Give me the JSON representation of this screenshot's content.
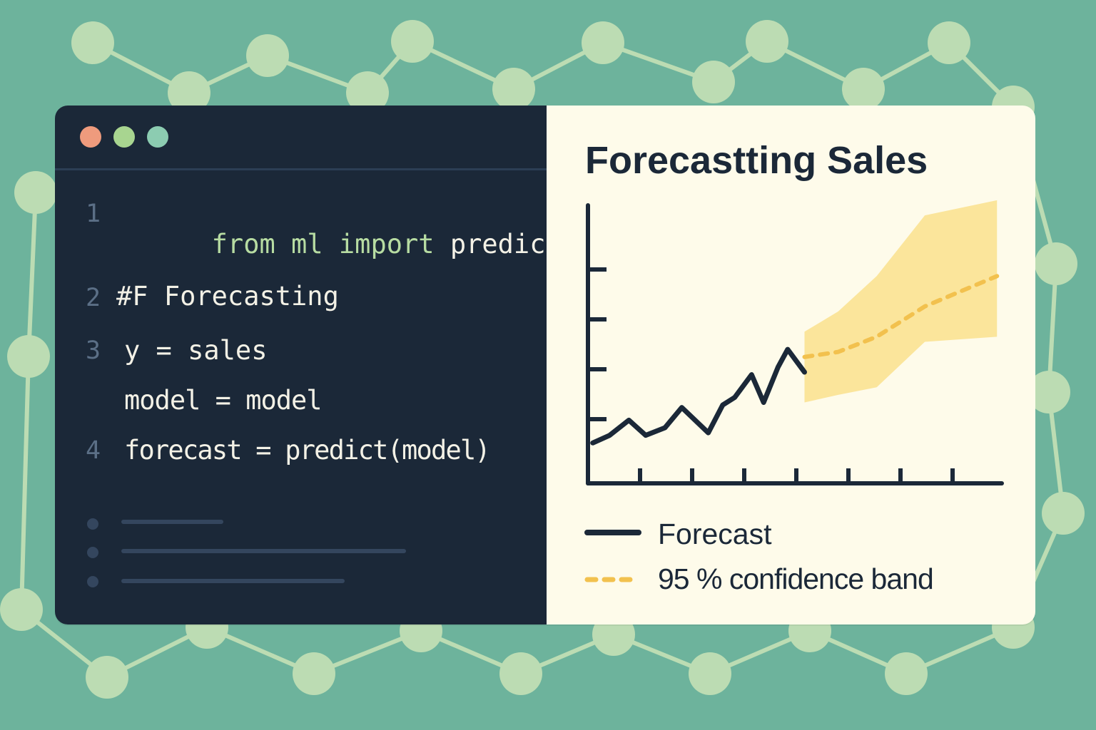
{
  "colors": {
    "background": "#6db39c",
    "node": "#bcdcb3",
    "code_bg": "#1b2838",
    "chart_bg": "#fefbea",
    "ink": "#1b2838",
    "band": "#fbe292",
    "band_line": "#f2c14e",
    "keyword": "#b7dca2"
  },
  "window_controls": [
    {
      "name": "close",
      "color": "#ef9b7d"
    },
    {
      "name": "minimize",
      "color": "#a8d590"
    },
    {
      "name": "zoom",
      "color": "#8cccb1"
    }
  ],
  "code": {
    "lines": [
      {
        "number": "1",
        "tokens": [
          {
            "text": "from",
            "kind": "keyword"
          },
          {
            "text": " ",
            "kind": "plain"
          },
          {
            "text": "ml",
            "kind": "keyword"
          },
          {
            "text": " ",
            "kind": "plain"
          },
          {
            "text": "import",
            "kind": "keyword"
          },
          {
            "text": " predict",
            "kind": "plain"
          }
        ]
      },
      {
        "number": "2",
        "text": "#F Forecasting"
      },
      {
        "number": "3",
        "text": "y = sales"
      },
      {
        "number": "",
        "text": "model = model"
      },
      {
        "number": "4",
        "text": "forecast = predict(model)"
      }
    ]
  },
  "chart_data": {
    "type": "line",
    "title": "Forecastting Sales",
    "xlabel": "",
    "ylabel": "",
    "x_ticks": 7,
    "y_ticks": 4,
    "x": [
      0,
      0.35,
      0.75,
      1.1,
      1.5,
      1.85,
      2.4,
      2.7,
      2.95,
      3.3,
      3.55,
      3.85,
      4.05,
      4.4
    ],
    "series": [
      {
        "name": "Forecast",
        "style": "solid",
        "x": [
          0,
          0.35,
          0.75,
          1.1,
          1.5,
          1.85,
          2.4,
          2.7,
          2.95,
          3.3,
          3.55,
          3.85,
          4.05,
          4.4
        ],
        "values": [
          0.9,
          1.05,
          1.35,
          1.05,
          1.2,
          1.6,
          1.1,
          1.65,
          1.8,
          2.25,
          1.7,
          2.4,
          2.75,
          2.3
        ]
      },
      {
        "name": "95 % confidence band",
        "style": "dashed",
        "x": [
          4.4,
          5.1,
          5.9,
          6.9,
          8.4
        ],
        "values": [
          2.6,
          2.7,
          3.0,
          3.6,
          4.2
        ],
        "lower": [
          1.7,
          1.85,
          2.0,
          2.9,
          3.0
        ],
        "upper": [
          3.1,
          3.5,
          4.2,
          5.4,
          5.7
        ]
      }
    ],
    "xlim": [
      -0.1,
      8.5
    ],
    "ylim": [
      0.1,
      5.6
    ],
    "legend": [
      {
        "label": "Forecast",
        "style": "solid"
      },
      {
        "label": "95 % confidence band",
        "style": "dashed"
      }
    ],
    "legend_placement": "bottom-left",
    "grid": false
  }
}
